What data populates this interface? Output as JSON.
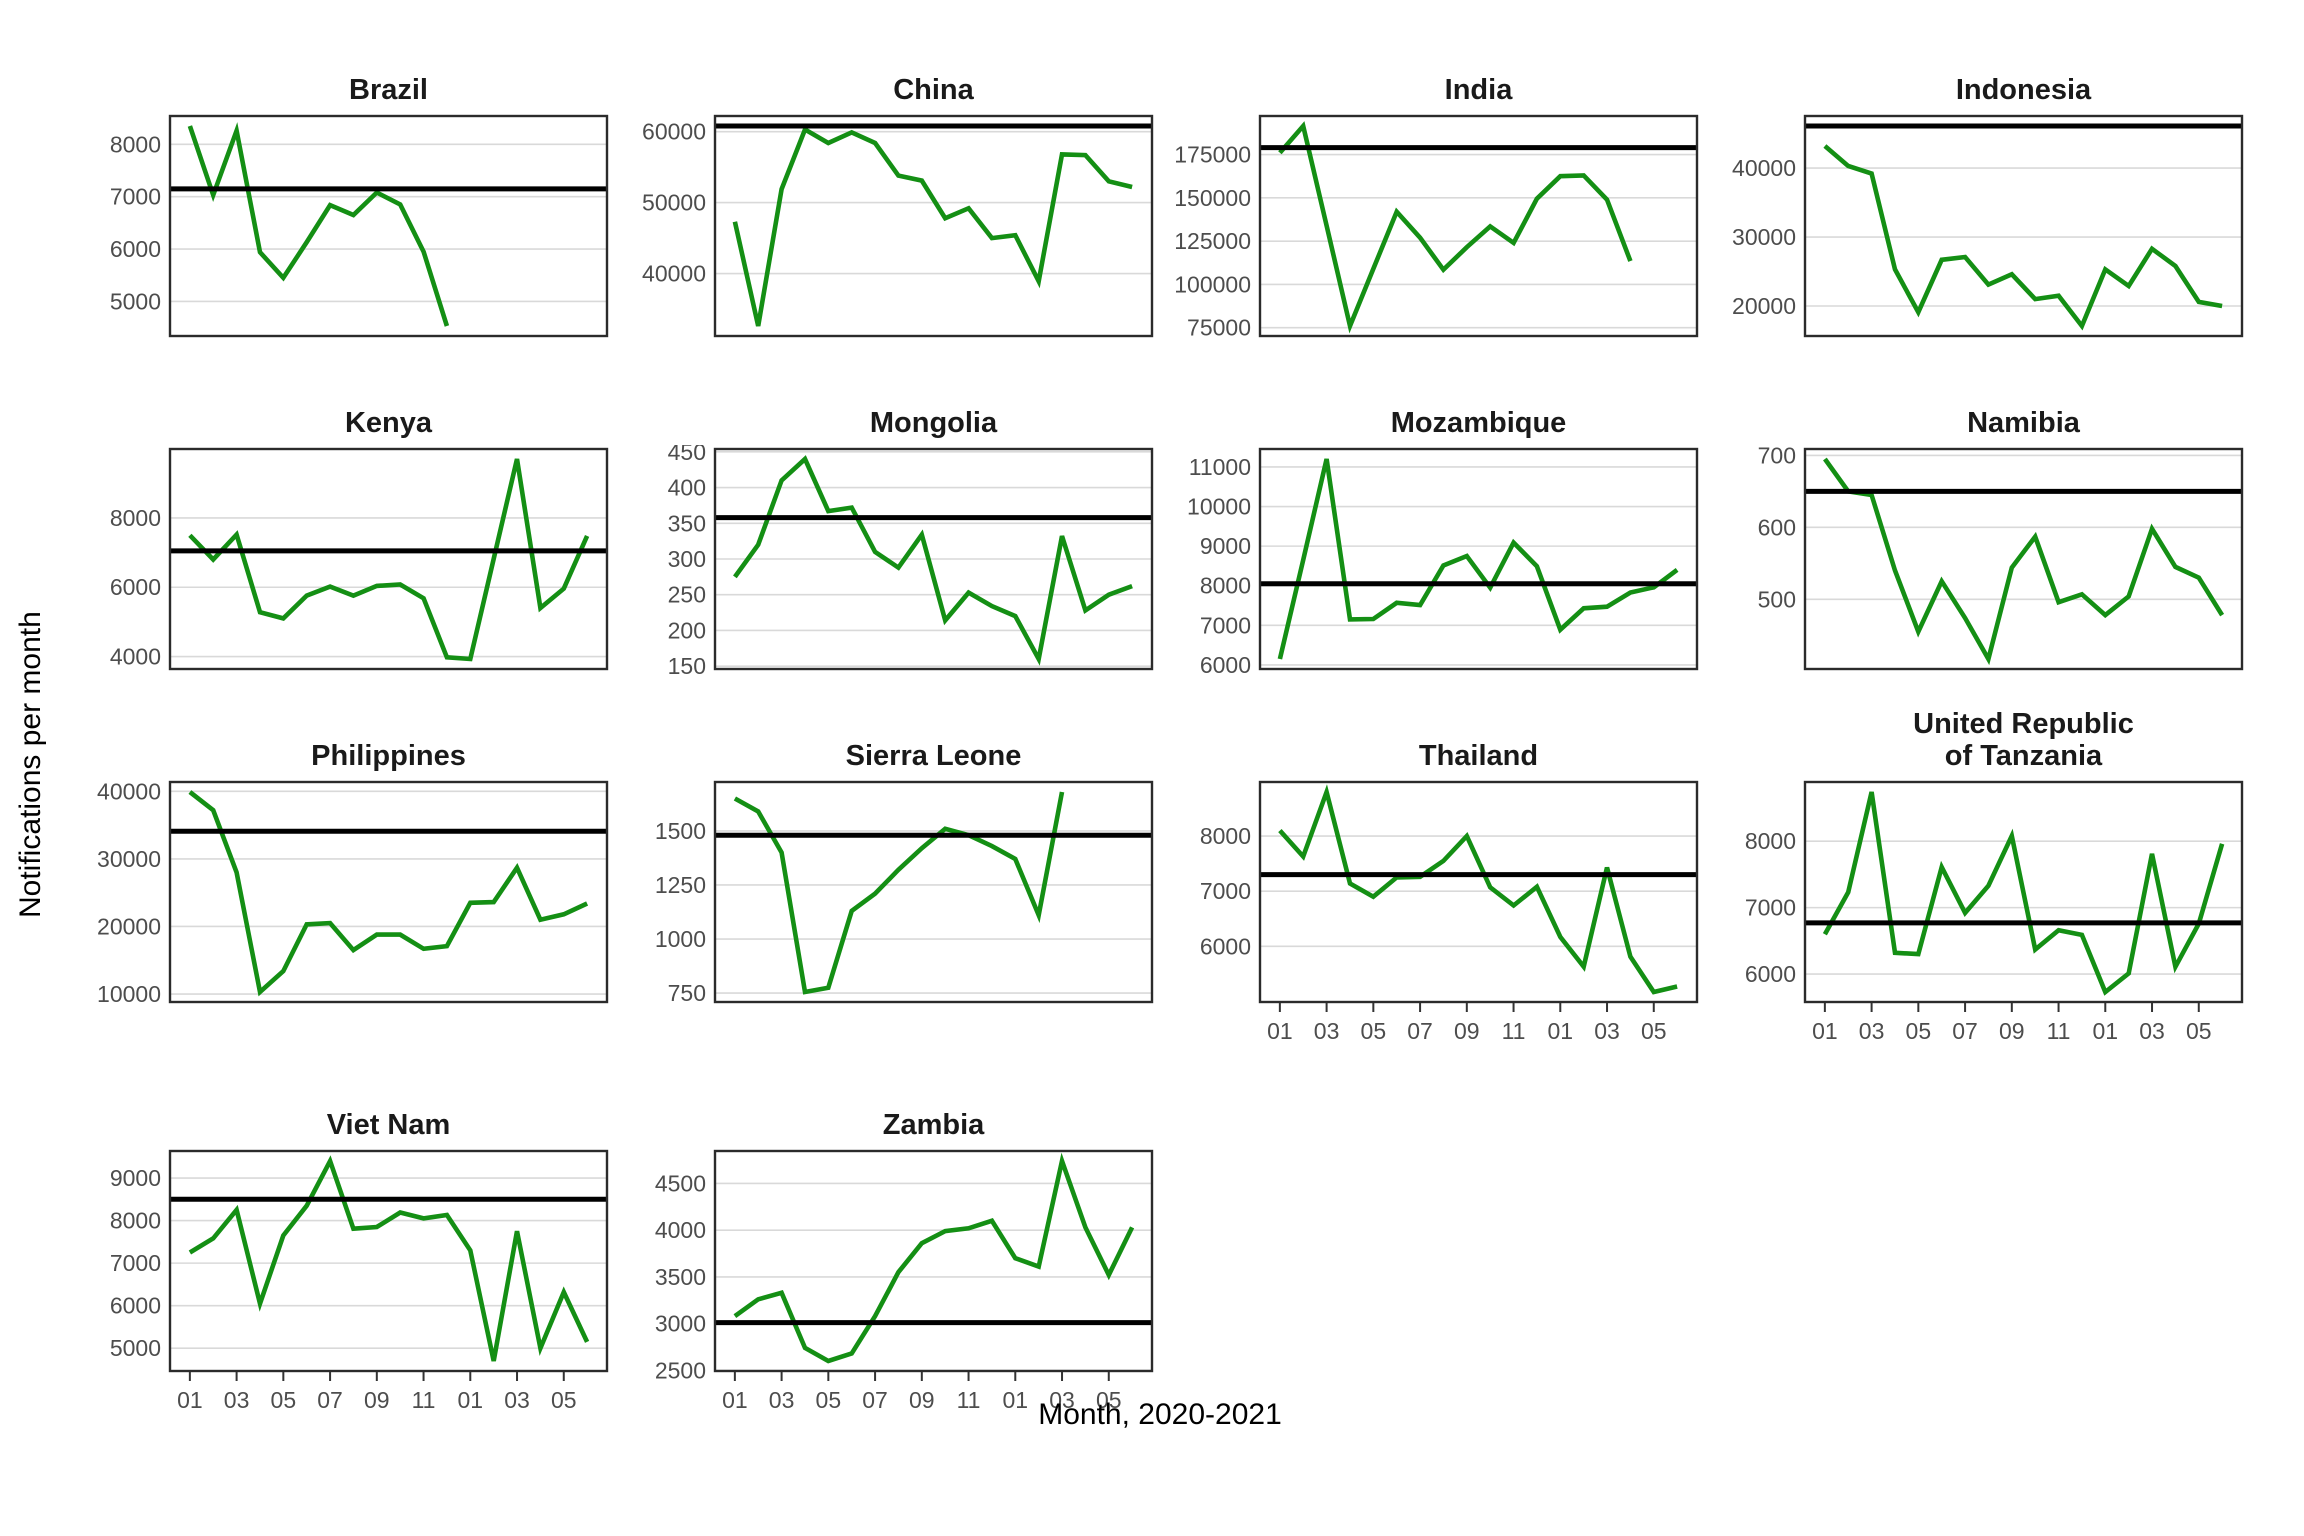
{
  "figure": {
    "ylabel": "Notifications per month",
    "xlabel": "Month, 2020-2021"
  },
  "colors": {
    "line": "#148f14",
    "baseline": "#000000",
    "grid": "#d9d9d9",
    "border": "#2b2b2b",
    "tick_text": "#4d4d4d",
    "title_text": "#1a1a1a"
  },
  "months_total": 18,
  "x_tick_months": [
    1,
    3,
    5,
    7,
    9,
    11,
    13,
    15,
    17
  ],
  "x_tick_labels": [
    "01",
    "03",
    "05",
    "07",
    "09",
    "11",
    "01",
    "03",
    "05"
  ],
  "chart_data": [
    {
      "type": "line",
      "title": "Brazil",
      "start": "2020-01",
      "values": [
        8350,
        7030,
        8260,
        5940,
        5450,
        6130,
        6840,
        6650,
        7080,
        6850,
        5950,
        4530
      ],
      "baseline": 7150,
      "yticks": [
        8000,
        7000,
        6000,
        5000
      ],
      "show_xticks": false
    },
    {
      "type": "line",
      "title": "China",
      "start": "2020-01",
      "values": [
        47300,
        32600,
        51900,
        60300,
        58400,
        59900,
        58400,
        53800,
        53100,
        47800,
        49200,
        45000,
        45400,
        38900,
        56800,
        56700,
        53000,
        52200
      ],
      "baseline": 60800,
      "yticks": [
        60000,
        50000,
        40000
      ],
      "show_xticks": false
    },
    {
      "type": "line",
      "title": "India",
      "start": "2020-01",
      "values": [
        176000,
        191500,
        134000,
        76000,
        109000,
        142000,
        127000,
        108500,
        121500,
        133500,
        124000,
        149500,
        162500,
        163000,
        149000,
        113500
      ],
      "baseline": 179000,
      "yticks": [
        175000,
        150000,
        125000,
        100000,
        75000
      ],
      "show_xticks": false
    },
    {
      "type": "line",
      "title": "Indonesia",
      "start": "2020-01",
      "values": [
        43200,
        40300,
        39200,
        25300,
        19100,
        26700,
        27100,
        23100,
        24600,
        21000,
        21500,
        17100,
        25300,
        22900,
        28300,
        25800,
        20600,
        20000
      ],
      "baseline": 46100,
      "yticks": [
        40000,
        30000,
        20000
      ],
      "show_xticks": false
    },
    {
      "type": "line",
      "title": "Kenya",
      "start": "2020-01",
      "values": [
        7500,
        6800,
        7520,
        5280,
        5100,
        5760,
        6020,
        5760,
        6040,
        6080,
        5680,
        3980,
        3930,
        6820,
        9700,
        5400,
        5960,
        7480
      ],
      "baseline": 7050,
      "yticks": [
        8000,
        6000,
        4000
      ],
      "show_xticks": false
    },
    {
      "type": "line",
      "title": "Mongolia",
      "start": "2020-01",
      "values": [
        275,
        320,
        410,
        440,
        367,
        372,
        310,
        288,
        334,
        214,
        253,
        234,
        220,
        160,
        332,
        228,
        250,
        262
      ],
      "baseline": 358,
      "yticks": [
        450,
        400,
        350,
        300,
        250,
        200,
        150
      ],
      "show_xticks": false
    },
    {
      "type": "line",
      "title": "Mozambique",
      "start": "2020-01",
      "values": [
        6150,
        8650,
        11200,
        7150,
        7160,
        7570,
        7510,
        8510,
        8750,
        7950,
        9090,
        8490,
        6890,
        7430,
        7470,
        7830,
        7960,
        8400
      ],
      "baseline": 8050,
      "yticks": [
        11000,
        10000,
        9000,
        8000,
        7000,
        6000
      ],
      "show_xticks": false
    },
    {
      "type": "line",
      "title": "Namibia",
      "start": "2020-01",
      "values": [
        695,
        650,
        645,
        540,
        455,
        525,
        474,
        417,
        544,
        587,
        496,
        507,
        478,
        504,
        598,
        545,
        530,
        478
      ],
      "baseline": 650,
      "yticks": [
        700,
        600,
        500
      ],
      "show_xticks": false
    },
    {
      "type": "line",
      "title": "Philippines",
      "start": "2020-01",
      "values": [
        39900,
        37200,
        28000,
        10300,
        13400,
        20300,
        20500,
        16500,
        18800,
        18800,
        16700,
        17100,
        23500,
        23600,
        28700,
        21000,
        21800,
        23400
      ],
      "baseline": 34100,
      "yticks": [
        40000,
        30000,
        20000,
        10000
      ],
      "show_xticks": false
    },
    {
      "type": "line",
      "title": "Sierra Leone",
      "start": "2020-01",
      "values": [
        1650,
        1590,
        1400,
        755,
        775,
        1130,
        1210,
        1320,
        1420,
        1510,
        1480,
        1430,
        1370,
        1110,
        1680
      ],
      "baseline": 1480,
      "yticks": [
        1500,
        1250,
        1000,
        750
      ],
      "show_xticks": false
    },
    {
      "type": "line",
      "title": "Thailand",
      "start": "2020-01",
      "values": [
        8100,
        7630,
        8800,
        7140,
        6900,
        7250,
        7260,
        7550,
        8000,
        7070,
        6740,
        7080,
        6170,
        5630,
        7430,
        5810,
        5170,
        5270
      ],
      "baseline": 7300,
      "yticks": [
        8000,
        7000,
        6000
      ],
      "show_xticks": true
    },
    {
      "type": "line",
      "title": "United Republic\nof Tanzania",
      "start": "2020-01",
      "values": [
        6600,
        7230,
        8740,
        6320,
        6300,
        7610,
        6920,
        7330,
        8080,
        6370,
        6660,
        6590,
        5730,
        6010,
        7810,
        6110,
        6760,
        7960
      ],
      "baseline": 6770,
      "yticks": [
        8000,
        7000,
        6000
      ],
      "show_xticks": true
    },
    {
      "type": "line",
      "title": "Viet Nam",
      "start": "2020-01",
      "values": [
        7250,
        7580,
        8250,
        6050,
        7650,
        8350,
        9400,
        7810,
        7850,
        8190,
        8050,
        8130,
        7300,
        4700,
        7750,
        5000,
        6320,
        5150
      ],
      "baseline": 8500,
      "yticks": [
        9000,
        8000,
        7000,
        6000,
        5000
      ],
      "show_xticks": true
    },
    {
      "type": "line",
      "title": "Zambia",
      "start": "2020-01",
      "values": [
        3080,
        3260,
        3330,
        2740,
        2600,
        2680,
        3080,
        3550,
        3860,
        3990,
        4020,
        4100,
        3700,
        3610,
        4740,
        4030,
        3520,
        4030
      ],
      "baseline": 3010,
      "yticks": [
        4500,
        4000,
        3500,
        3000,
        2500
      ],
      "show_xticks": true
    }
  ]
}
